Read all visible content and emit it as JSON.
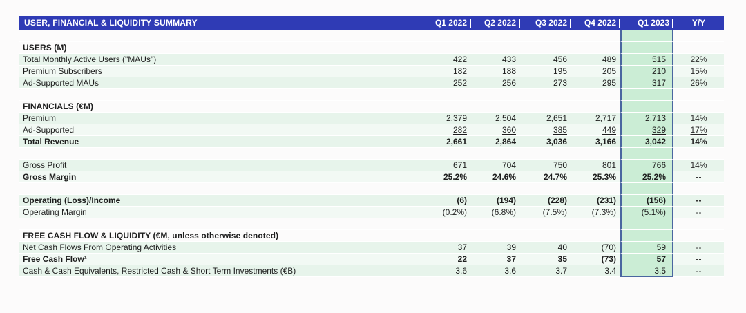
{
  "table": {
    "title": "USER, FINANCIAL & LIQUIDITY SUMMARY",
    "columns": [
      "Q1 2022",
      "Q2 2022",
      "Q3 2022",
      "Q4 2022",
      "Q1 2023",
      "Y/Y"
    ],
    "highlight_column": "Q1 2023",
    "colors": {
      "header_bg": "#2f3bb5",
      "header_text": "#ffffff",
      "row_green": "#e7f4eb",
      "row_green_alt": "#f2f9f4",
      "highlight_fill": "#cbedd5",
      "highlight_border": "#4a66a0",
      "text": "#1d1d1d"
    },
    "rows": [
      {
        "type": "spacer"
      },
      {
        "type": "section",
        "label": "USERS (M)"
      },
      {
        "type": "data",
        "tint": "g1",
        "label": "Total Monthly Active Users (\"MAUs\")",
        "values": [
          "422",
          "433",
          "456",
          "489",
          "515",
          "22%"
        ]
      },
      {
        "type": "data",
        "tint": "g2",
        "label": "Premium Subscribers",
        "values": [
          "182",
          "188",
          "195",
          "205",
          "210",
          "15%"
        ]
      },
      {
        "type": "data",
        "tint": "g1",
        "label": "Ad-Supported MAUs",
        "values": [
          "252",
          "256",
          "273",
          "295",
          "317",
          "26%"
        ]
      },
      {
        "type": "spacer"
      },
      {
        "type": "section",
        "label": "FINANCIALS (€M)"
      },
      {
        "type": "data",
        "tint": "g1",
        "label": "Premium",
        "values": [
          "2,379",
          "2,504",
          "2,651",
          "2,717",
          "2,713",
          "14%"
        ]
      },
      {
        "type": "data",
        "tint": "g2",
        "underline": true,
        "label": "Ad-Supported",
        "values": [
          "282",
          "360",
          "385",
          "449",
          "329",
          "17%"
        ]
      },
      {
        "type": "data",
        "tint": "g1",
        "bold": true,
        "label": "Total Revenue",
        "values": [
          "2,661",
          "2,864",
          "3,036",
          "3,166",
          "3,042",
          "14%"
        ]
      },
      {
        "type": "spacer"
      },
      {
        "type": "data",
        "tint": "g1",
        "label": "Gross Profit",
        "values": [
          "671",
          "704",
          "750",
          "801",
          "766",
          "14%"
        ]
      },
      {
        "type": "data",
        "tint": "g2",
        "bold": true,
        "label": "Gross Margin",
        "values": [
          "25.2%",
          "24.6%",
          "24.7%",
          "25.3%",
          "25.2%",
          "--"
        ]
      },
      {
        "type": "spacer"
      },
      {
        "type": "data",
        "tint": "g1",
        "bold": true,
        "label": "Operating (Loss)/Income",
        "values": [
          "(6)",
          "(194)",
          "(228)",
          "(231)",
          "(156)",
          "--"
        ]
      },
      {
        "type": "data",
        "tint": "g2",
        "label": "Operating Margin",
        "values": [
          "(0.2%)",
          "(6.8%)",
          "(7.5%)",
          "(7.3%)",
          "(5.1%)",
          "--"
        ]
      },
      {
        "type": "spacer"
      },
      {
        "type": "section",
        "label": "FREE CASH FLOW & LIQUIDITY (€M, unless otherwise denoted)"
      },
      {
        "type": "data",
        "tint": "g1",
        "label": "Net Cash Flows From Operating Activities",
        "values": [
          "37",
          "39",
          "40",
          "(70)",
          "59",
          "--"
        ]
      },
      {
        "type": "data",
        "tint": "g2",
        "bold": true,
        "label": "Free Cash Flow¹",
        "values": [
          "22",
          "37",
          "35",
          "(73)",
          "57",
          "--"
        ]
      },
      {
        "type": "data",
        "tint": "g1",
        "label": "Cash & Cash Equivalents, Restricted Cash & Short Term Investments (€B)",
        "values": [
          "3.6",
          "3.6",
          "3.7",
          "3.4",
          "3.5",
          "--"
        ]
      }
    ]
  }
}
